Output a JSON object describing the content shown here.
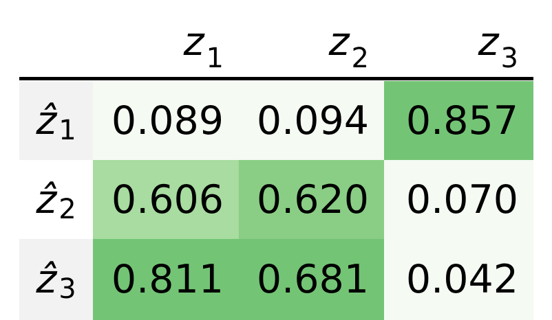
{
  "table": {
    "columns": [
      {
        "symbol": "z",
        "sub": "1"
      },
      {
        "symbol": "z",
        "sub": "2"
      },
      {
        "symbol": "z",
        "sub": "3"
      }
    ],
    "rows": [
      {
        "label": {
          "symbol": "ẑ",
          "sub": "1"
        },
        "cells": [
          "0.089",
          "0.094",
          "0.857"
        ],
        "colors": [
          "#f5faf3",
          "#f5faf3",
          "#74c476"
        ]
      },
      {
        "label": {
          "symbol": "ẑ",
          "sub": "2"
        },
        "cells": [
          "0.606",
          "0.620",
          "0.070"
        ],
        "colors": [
          "#a8dca0",
          "#8ace85",
          "#f5faf3"
        ]
      },
      {
        "label": {
          "symbol": "ẑ",
          "sub": "3"
        },
        "cells": [
          "0.811",
          "0.681",
          "0.042"
        ],
        "colors": [
          "#74c476",
          "#74c476",
          "#f5faf3"
        ]
      }
    ]
  }
}
